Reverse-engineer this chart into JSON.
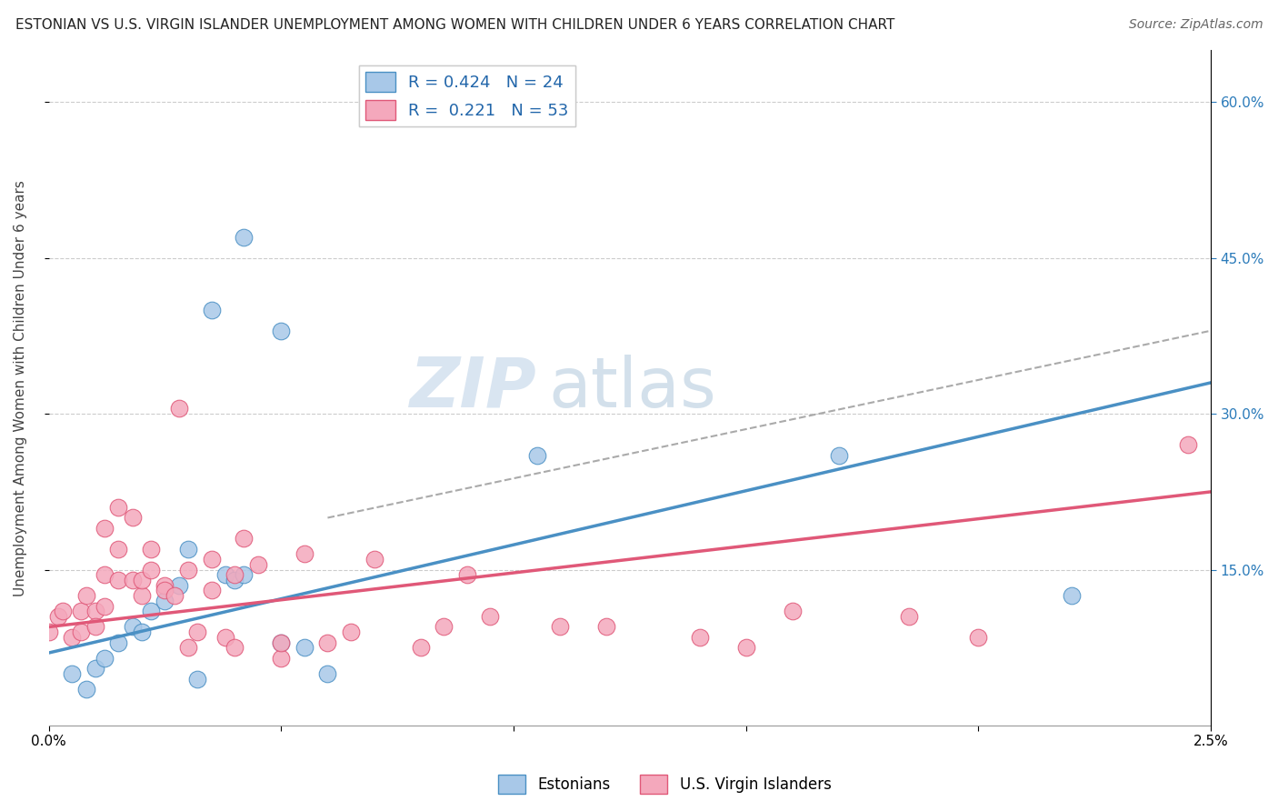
{
  "title": "ESTONIAN VS U.S. VIRGIN ISLANDER UNEMPLOYMENT AMONG WOMEN WITH CHILDREN UNDER 6 YEARS CORRELATION CHART",
  "source": "Source: ZipAtlas.com",
  "ylabel": "Unemployment Among Women with Children Under 6 years",
  "xlim": [
    0.0,
    2.5
  ],
  "ylim": [
    0.0,
    65.0
  ],
  "yticks_right": [
    15.0,
    30.0,
    45.0,
    60.0
  ],
  "xticks": [
    0.0,
    0.5,
    1.0,
    1.5,
    2.0,
    2.5
  ],
  "legend_blue_label": "R = 0.424   N = 24",
  "legend_pink_label": "R =  0.221   N = 53",
  "legend_bottom_blue": "Estonians",
  "legend_bottom_pink": "U.S. Virgin Islanders",
  "watermark_zip": "ZIP",
  "watermark_atlas": "atlas",
  "blue_color": "#a8c8e8",
  "blue_color_line": "#4a90c4",
  "pink_color": "#f4a8bc",
  "pink_color_line": "#e05878",
  "blue_scatter": [
    [
      0.05,
      5.0
    ],
    [
      0.08,
      3.5
    ],
    [
      0.1,
      5.5
    ],
    [
      0.12,
      6.5
    ],
    [
      0.15,
      8.0
    ],
    [
      0.18,
      9.5
    ],
    [
      0.2,
      9.0
    ],
    [
      0.22,
      11.0
    ],
    [
      0.25,
      12.0
    ],
    [
      0.28,
      13.5
    ],
    [
      0.3,
      17.0
    ],
    [
      0.32,
      4.5
    ],
    [
      0.38,
      14.5
    ],
    [
      0.4,
      14.0
    ],
    [
      0.42,
      14.5
    ],
    [
      0.5,
      8.0
    ],
    [
      0.55,
      7.5
    ],
    [
      0.6,
      5.0
    ],
    [
      0.35,
      40.0
    ],
    [
      0.42,
      47.0
    ],
    [
      0.5,
      38.0
    ],
    [
      1.05,
      26.0
    ],
    [
      1.7,
      26.0
    ],
    [
      2.2,
      12.5
    ]
  ],
  "pink_scatter": [
    [
      0.0,
      9.0
    ],
    [
      0.02,
      10.5
    ],
    [
      0.03,
      11.0
    ],
    [
      0.05,
      8.5
    ],
    [
      0.07,
      9.0
    ],
    [
      0.07,
      11.0
    ],
    [
      0.08,
      12.5
    ],
    [
      0.1,
      11.0
    ],
    [
      0.1,
      9.5
    ],
    [
      0.12,
      11.5
    ],
    [
      0.12,
      19.0
    ],
    [
      0.12,
      14.5
    ],
    [
      0.15,
      14.0
    ],
    [
      0.15,
      17.0
    ],
    [
      0.15,
      21.0
    ],
    [
      0.18,
      14.0
    ],
    [
      0.18,
      20.0
    ],
    [
      0.2,
      12.5
    ],
    [
      0.2,
      14.0
    ],
    [
      0.22,
      17.0
    ],
    [
      0.22,
      15.0
    ],
    [
      0.25,
      13.5
    ],
    [
      0.25,
      13.0
    ],
    [
      0.27,
      12.5
    ],
    [
      0.28,
      30.5
    ],
    [
      0.3,
      15.0
    ],
    [
      0.3,
      7.5
    ],
    [
      0.32,
      9.0
    ],
    [
      0.35,
      13.0
    ],
    [
      0.35,
      16.0
    ],
    [
      0.38,
      8.5
    ],
    [
      0.4,
      14.5
    ],
    [
      0.4,
      7.5
    ],
    [
      0.42,
      18.0
    ],
    [
      0.45,
      15.5
    ],
    [
      0.5,
      6.5
    ],
    [
      0.5,
      8.0
    ],
    [
      0.55,
      16.5
    ],
    [
      0.6,
      8.0
    ],
    [
      0.65,
      9.0
    ],
    [
      0.7,
      16.0
    ],
    [
      0.8,
      7.5
    ],
    [
      0.85,
      9.5
    ],
    [
      0.9,
      14.5
    ],
    [
      0.95,
      10.5
    ],
    [
      1.1,
      9.5
    ],
    [
      1.2,
      9.5
    ],
    [
      1.4,
      8.5
    ],
    [
      1.5,
      7.5
    ],
    [
      1.6,
      11.0
    ],
    [
      1.85,
      10.5
    ],
    [
      2.0,
      8.5
    ],
    [
      2.45,
      27.0
    ]
  ],
  "blue_trend_x": [
    0.0,
    2.5
  ],
  "blue_trend_y": [
    7.0,
    33.0
  ],
  "pink_trend_x": [
    0.0,
    2.5
  ],
  "pink_trend_y": [
    9.5,
    22.5
  ],
  "dashed_trend_x": [
    0.6,
    2.5
  ],
  "dashed_trend_y": [
    20.0,
    38.0
  ],
  "grid_color": "#cccccc",
  "background_color": "#ffffff",
  "title_fontsize": 11,
  "source_fontsize": 10,
  "ylabel_fontsize": 11,
  "tick_fontsize": 11,
  "watermark_fontsize": 55,
  "watermark_color_zip": "#c0d4e8",
  "watermark_color_atlas": "#b0c8dc"
}
